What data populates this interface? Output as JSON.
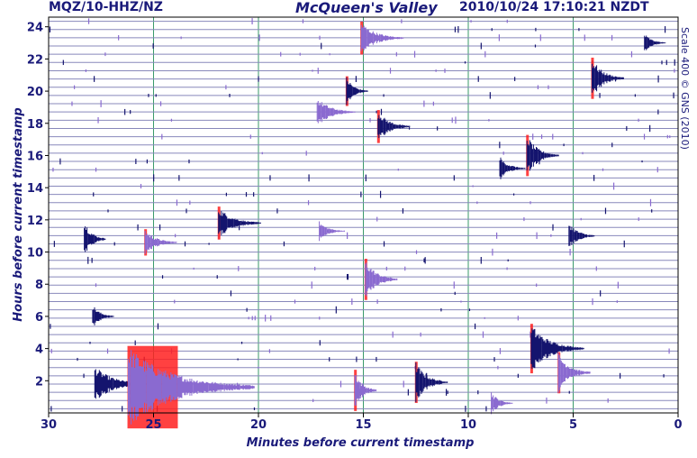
{
  "header": {
    "station": "MQZ/10-HHZ/NZ",
    "site": "McQueen's Valley",
    "timestamp": "2010/10/24 17:10:21 NZDT"
  },
  "copyright": "Scale 400 © GNS (2010)",
  "chart_data": {
    "type": "line",
    "title": "McQueen's Valley",
    "xlabel": "Minutes before current timestamp",
    "ylabel": "Hours before current timestamp",
    "xlim": [
      30,
      0
    ],
    "ylim": [
      0,
      24.6
    ],
    "x_ticks": [
      "30",
      "25",
      "20",
      "15",
      "10",
      "5",
      "0"
    ],
    "x_tick_values": [
      30,
      25,
      20,
      15,
      10,
      5,
      0
    ],
    "y_ticks": [
      "2",
      "4",
      "6",
      "8",
      "10",
      "12",
      "14",
      "16",
      "18",
      "20",
      "22",
      "24"
    ],
    "y_tick_values": [
      2,
      4,
      6,
      8,
      10,
      12,
      14,
      16,
      18,
      20,
      22,
      24
    ],
    "trace_count": 48,
    "trace_interval_minutes": 30,
    "grid": true,
    "colors": {
      "trace_dark": "#14146e",
      "trace_light": "#8a6ad0",
      "clipped": "#ff2020",
      "grid_vertical": "#3a9a6a",
      "grid_horizontal": "#8888bb",
      "axis_text": "#1a1a7a"
    },
    "events": [
      {
        "minutes": 27.8,
        "hours": 1.8,
        "amp": 2.2,
        "dur": 2.5
      },
      {
        "minutes": 26.2,
        "hours": 1.6,
        "amp": 5,
        "dur": 6,
        "clipped": true
      },
      {
        "minutes": 28.3,
        "hours": 10.8,
        "amp": 2.4,
        "dur": 1.0
      },
      {
        "minutes": 27.9,
        "hours": 6.0,
        "amp": 1.5,
        "dur": 1.0
      },
      {
        "minutes": 25.4,
        "hours": 10.6,
        "amp": 1.6,
        "dur": 1.5,
        "clipped": true
      },
      {
        "minutes": 21.9,
        "hours": 11.8,
        "amp": 2.0,
        "dur": 2.0,
        "clipped": true
      },
      {
        "minutes": 17.2,
        "hours": 18.7,
        "amp": 1.8,
        "dur": 1.8
      },
      {
        "minutes": 17.1,
        "hours": 11.3,
        "amp": 1.2,
        "dur": 1.2
      },
      {
        "minutes": 15.8,
        "hours": 20.0,
        "amp": 1.8,
        "dur": 1.0,
        "clipped": true
      },
      {
        "minutes": 15.1,
        "hours": 23.3,
        "amp": 2.0,
        "dur": 2.0,
        "clipped": true
      },
      {
        "minutes": 14.3,
        "hours": 17.8,
        "amp": 2.0,
        "dur": 1.5,
        "clipped": true
      },
      {
        "minutes": 14.9,
        "hours": 8.3,
        "amp": 2.5,
        "dur": 1.5,
        "clipped": true
      },
      {
        "minutes": 12.5,
        "hours": 1.9,
        "amp": 2.5,
        "dur": 1.5,
        "clipped": true
      },
      {
        "minutes": 8.9,
        "hours": 0.6,
        "amp": 1.5,
        "dur": 1.0
      },
      {
        "minutes": 15.4,
        "hours": 1.4,
        "amp": 2.5,
        "dur": 1.0,
        "clipped": true
      },
      {
        "minutes": 7.0,
        "hours": 4.0,
        "amp": 3.0,
        "dur": 2.5,
        "clipped": true
      },
      {
        "minutes": 5.7,
        "hours": 2.5,
        "amp": 2.5,
        "dur": 1.5,
        "clipped": true
      },
      {
        "minutes": 7.2,
        "hours": 16.0,
        "amp": 2.5,
        "dur": 1.5,
        "clipped": true
      },
      {
        "minutes": 4.1,
        "hours": 20.8,
        "amp": 2.5,
        "dur": 1.5,
        "clipped": true
      },
      {
        "minutes": 5.2,
        "hours": 11.0,
        "amp": 1.8,
        "dur": 1.2
      },
      {
        "minutes": 1.6,
        "hours": 23.0,
        "amp": 1.2,
        "dur": 1.0
      },
      {
        "minutes": 8.5,
        "hours": 15.2,
        "amp": 1.5,
        "dur": 1.2
      }
    ]
  }
}
